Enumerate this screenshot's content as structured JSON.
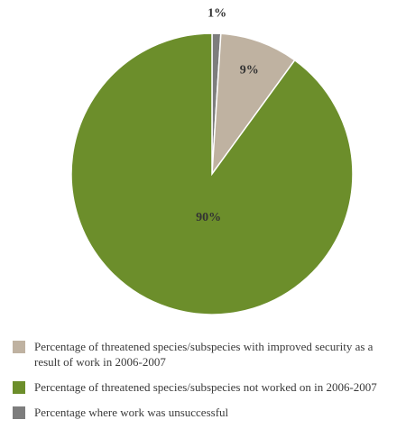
{
  "colors": {
    "improved": "#bfb2a1",
    "not_worked": "#6c8e2b",
    "unsuccessful": "#7d7d7d",
    "slice_border": "#ffffff"
  },
  "chart_data": {
    "type": "pie",
    "slices": [
      {
        "label": "Percentage where work was unsuccessful",
        "value": 1,
        "display": "1%",
        "color": "#7d7d7d"
      },
      {
        "label": "Percentage of threatened species/subspecies with improved security as a result of work in 2006-2007",
        "value": 9,
        "display": "9%",
        "color": "#bfb2a1"
      },
      {
        "label": "Percentage of threatened species/subspecies not worked on in 2006-2007",
        "value": 90,
        "display": "90%",
        "color": "#6c8e2b"
      }
    ],
    "start_angle": "top",
    "direction": "clockwise",
    "legend_position": "bottom-left"
  },
  "legend": {
    "items": [
      {
        "label": "Percentage of threatened species/subspecies with improved security as a result of work in 2006-2007",
        "color": "#bfb2a1"
      },
      {
        "label": "Percentage of threatened species/subspecies not worked on in 2006-2007",
        "color": "#6c8e2b"
      },
      {
        "label": "Percentage where work was unsuccessful",
        "color": "#7d7d7d"
      }
    ]
  }
}
